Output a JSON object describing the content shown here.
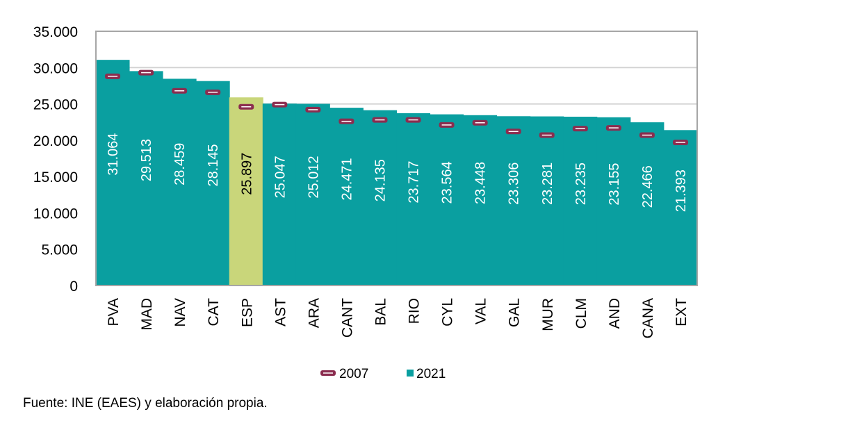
{
  "chart_data": {
    "type": "bar",
    "title": "",
    "xlabel": "",
    "ylabel": "",
    "ylim": [
      0,
      35000
    ],
    "y_ticks": [
      0,
      5000,
      10000,
      15000,
      20000,
      25000,
      30000,
      35000
    ],
    "y_tick_labels": [
      "0",
      "5.000",
      "10.000",
      "15.000",
      "20.000",
      "25.000",
      "30.000",
      "35.000"
    ],
    "grid": true,
    "legend_position": "bottom",
    "categories": [
      "PVA",
      "MAD",
      "NAV",
      "CAT",
      "ESP",
      "AST",
      "ARA",
      "CANT",
      "BAL",
      "RIO",
      "CYL",
      "VAL",
      "GAL",
      "MUR",
      "CLM",
      "AND",
      "CANA",
      "EXT"
    ],
    "highlight_category": "ESP",
    "series": [
      {
        "name": "2007",
        "kind": "marker",
        "color": "#8b2d4f",
        "values": [
          28800,
          29300,
          26800,
          26600,
          24600,
          24900,
          24200,
          22600,
          22800,
          22800,
          22100,
          22400,
          21200,
          20700,
          21600,
          21700,
          20700,
          19700
        ]
      },
      {
        "name": "2021",
        "kind": "bar",
        "color": "#0a9fa0",
        "highlight_color": "#c9d67a",
        "values": [
          31064,
          29513,
          28459,
          28145,
          25897,
          25047,
          25012,
          24471,
          24135,
          23717,
          23564,
          23448,
          23306,
          23281,
          23235,
          23155,
          22466,
          21393
        ],
        "labels": [
          "31.064",
          "29.513",
          "28.459",
          "28.145",
          "25.897",
          "25.047",
          "25.012",
          "24.471",
          "24.135",
          "23.717",
          "23.564",
          "23.448",
          "23.306",
          "23.281",
          "23.235",
          "23.155",
          "22.466",
          "21.393"
        ]
      }
    ]
  },
  "legend": {
    "items": [
      "2007",
      "2021"
    ]
  },
  "source": "Fuente: INE (EAES) y elaboración propia."
}
